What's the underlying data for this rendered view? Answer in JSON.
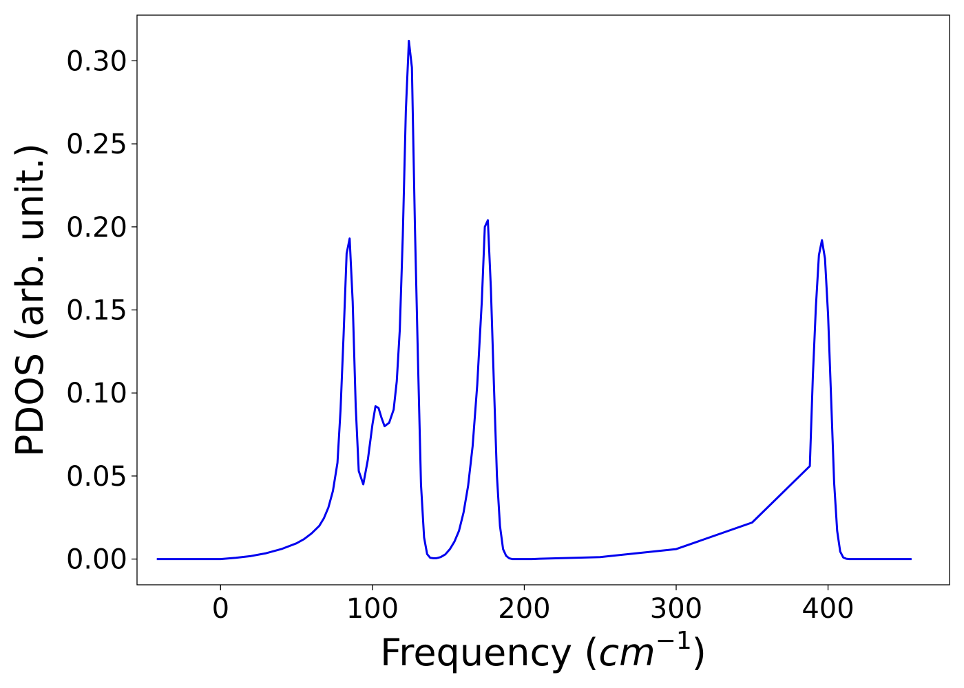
{
  "chart_data": {
    "type": "line",
    "xlabel": "Frequency",
    "xlabel_unit_base": "cm",
    "xlabel_unit_exponent": "−1",
    "ylabel": "PDOS (arb. unit.)",
    "xlim": [
      -55,
      480
    ],
    "ylim": [
      -0.0155,
      0.3275
    ],
    "xticks": [
      {
        "value": 0,
        "label": "0"
      },
      {
        "value": 100,
        "label": "100"
      },
      {
        "value": 200,
        "label": "200"
      },
      {
        "value": 300,
        "label": "300"
      },
      {
        "value": 400,
        "label": "400"
      }
    ],
    "yticks": [
      {
        "value": 0.0,
        "label": "0.00"
      },
      {
        "value": 0.05,
        "label": "0.05"
      },
      {
        "value": 0.1,
        "label": "0.10"
      },
      {
        "value": 0.15,
        "label": "0.15"
      },
      {
        "value": 0.2,
        "label": "0.20"
      },
      {
        "value": 0.25,
        "label": "0.25"
      },
      {
        "value": 0.3,
        "label": "0.30"
      }
    ],
    "grid": false,
    "series": [
      {
        "color": "#0000ee",
        "x": [
          -42,
          0,
          10,
          20,
          30,
          40,
          50,
          55,
          60,
          65,
          68,
          71,
          74,
          77,
          79,
          81,
          83,
          85,
          87,
          89,
          91,
          94,
          97,
          100,
          102,
          104,
          106,
          108,
          111,
          114,
          116,
          118,
          120,
          122,
          124,
          126,
          128,
          130,
          132,
          134,
          136,
          138,
          140,
          142,
          145,
          148,
          151,
          154,
          157,
          160,
          163,
          166,
          169,
          172,
          174,
          176,
          178,
          180,
          182,
          184,
          186,
          188,
          190,
          192,
          194,
          196,
          198,
          200,
          202,
          205,
          210,
          250,
          300,
          350,
          388,
          390,
          392,
          394,
          396,
          398,
          400,
          402,
          404,
          406,
          408,
          410,
          412,
          414,
          416,
          418,
          420,
          422,
          424,
          426,
          428,
          430,
          435,
          455
        ],
        "y": [
          0.0,
          0.0,
          0.0008,
          0.0018,
          0.0035,
          0.006,
          0.0095,
          0.012,
          0.0155,
          0.02,
          0.0245,
          0.031,
          0.041,
          0.058,
          0.09,
          0.135,
          0.184,
          0.193,
          0.155,
          0.092,
          0.053,
          0.045,
          0.06,
          0.081,
          0.092,
          0.091,
          0.085,
          0.08,
          0.082,
          0.09,
          0.107,
          0.138,
          0.195,
          0.27,
          0.312,
          0.296,
          0.2,
          0.12,
          0.045,
          0.013,
          0.003,
          0.0008,
          0.0005,
          0.0005,
          0.0012,
          0.0028,
          0.006,
          0.0105,
          0.017,
          0.028,
          0.044,
          0.068,
          0.105,
          0.155,
          0.2,
          0.204,
          0.163,
          0.105,
          0.05,
          0.02,
          0.006,
          0.002,
          0.0005,
          0.0,
          0.0,
          0.0,
          0.0,
          0.0,
          0.0,
          0.0,
          0.0002,
          0.0012,
          0.006,
          0.022,
          0.056,
          0.11,
          0.152,
          0.183,
          0.192,
          0.181,
          0.147,
          0.097,
          0.046,
          0.017,
          0.0045,
          0.001,
          0.0002,
          0.0,
          0.0,
          0.0,
          0.0,
          0.0,
          0.0,
          0.0,
          0.0,
          0.0,
          0.0,
          0.0
        ]
      }
    ]
  }
}
